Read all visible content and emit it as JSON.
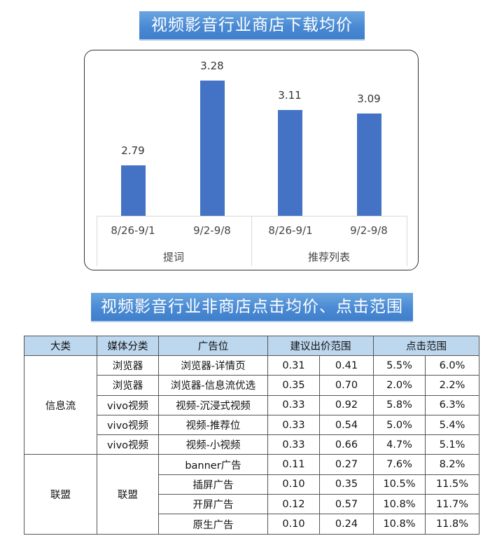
{
  "top_banner": {
    "title": "视频影音行业商店下载均价"
  },
  "chart_data": {
    "type": "bar",
    "title": "视频影音行业商店下载均价",
    "xlabel": "",
    "ylabel": "",
    "ylim": [
      2.5,
      3.35
    ],
    "grid": false,
    "legend": null,
    "groups": [
      {
        "name": "提词",
        "categories": [
          "8/26-9/1",
          "9/2-9/8"
        ],
        "values": [
          2.79,
          3.28
        ]
      },
      {
        "name": "推荐列表",
        "categories": [
          "8/26-9/1",
          "9/2-9/8"
        ],
        "values": [
          3.11,
          3.09
        ]
      }
    ],
    "categories": [
      "8/26-9/1",
      "9/2-9/8",
      "8/26-9/1",
      "9/2-9/8"
    ],
    "values": [
      2.79,
      3.28,
      3.11,
      3.09
    ],
    "value_labels": [
      "2.79",
      "3.28",
      "3.11",
      "3.09"
    ],
    "bar_color": "#4472c4"
  },
  "bottom_banner": {
    "title": "视频影音行业非商店点击均价、点击范围"
  },
  "table": {
    "headers": [
      "大类",
      "媒体分类",
      "广告位",
      "建议出价范围",
      "点击范围"
    ],
    "header_color": "#bdd7ee",
    "groups": [
      {
        "category": "信息流",
        "rows": [
          {
            "media": "浏览器",
            "slot": "浏览器-详情页",
            "bid_min": "0.31",
            "bid_max": "0.41",
            "click_min": "5.5%",
            "click_max": "6.0%"
          },
          {
            "media": "浏览器",
            "slot": "浏览器-信息流优选",
            "bid_min": "0.35",
            "bid_max": "0.70",
            "click_min": "2.0%",
            "click_max": "2.2%"
          },
          {
            "media": "vivo视频",
            "slot": "视频-沉浸式视频",
            "bid_min": "0.33",
            "bid_max": "0.92",
            "click_min": "5.8%",
            "click_max": "6.3%"
          },
          {
            "media": "vivo视频",
            "slot": "视频-推荐位",
            "bid_min": "0.33",
            "bid_max": "0.54",
            "click_min": "5.0%",
            "click_max": "5.4%"
          },
          {
            "media": "vivo视频",
            "slot": "视频-小视频",
            "bid_min": "0.33",
            "bid_max": "0.66",
            "click_min": "4.7%",
            "click_max": "5.1%"
          }
        ]
      },
      {
        "category": "联盟",
        "media": "联盟",
        "rows": [
          {
            "slot": "banner广告",
            "bid_min": "0.11",
            "bid_max": "0.27",
            "click_min": "7.6%",
            "click_max": "8.2%"
          },
          {
            "slot": "插屏广告",
            "bid_min": "0.10",
            "bid_max": "0.35",
            "click_min": "10.5%",
            "click_max": "11.5%"
          },
          {
            "slot": "开屏广告",
            "bid_min": "0.12",
            "bid_max": "0.57",
            "click_min": "10.8%",
            "click_max": "11.7%"
          },
          {
            "slot": "原生广告",
            "bid_min": "0.10",
            "bid_max": "0.24",
            "click_min": "10.8%",
            "click_max": "11.8%"
          }
        ]
      }
    ]
  }
}
